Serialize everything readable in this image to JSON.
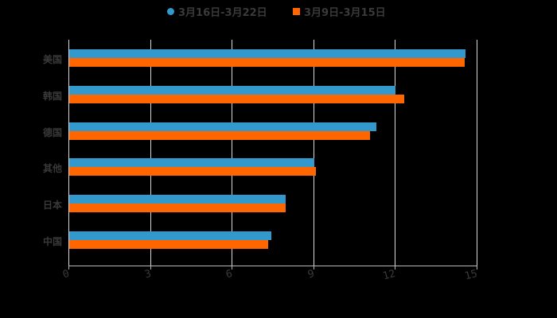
{
  "chart_data": {
    "type": "bar",
    "orientation": "horizontal",
    "title": "",
    "xlabel": "",
    "ylabel": "",
    "xlim": [
      0,
      15
    ],
    "xticks": [
      "0",
      "3",
      "6",
      "9",
      "12",
      "15"
    ],
    "grid": true,
    "legend_position": "top",
    "categories": [
      "美国",
      "韩国",
      "德国",
      "其他",
      "日本",
      "中国"
    ],
    "series": [
      {
        "name": "3月16日-3月22日",
        "color": "#3399cc",
        "values": [
          14.56,
          11.99,
          11.29,
          9.0,
          7.95,
          7.43
        ]
      },
      {
        "name": "3月9日-3月15日",
        "color": "#ff6600",
        "values": [
          14.53,
          12.31,
          11.05,
          9.06,
          7.95,
          7.31
        ]
      }
    ]
  },
  "legend": {
    "series1": "3月16日-3月22日",
    "series2": "3月9日-3月15日"
  },
  "colors": {
    "series1": "#3399cc",
    "series2": "#ff6600",
    "background": "#000000",
    "text": "#3a3a3a"
  }
}
